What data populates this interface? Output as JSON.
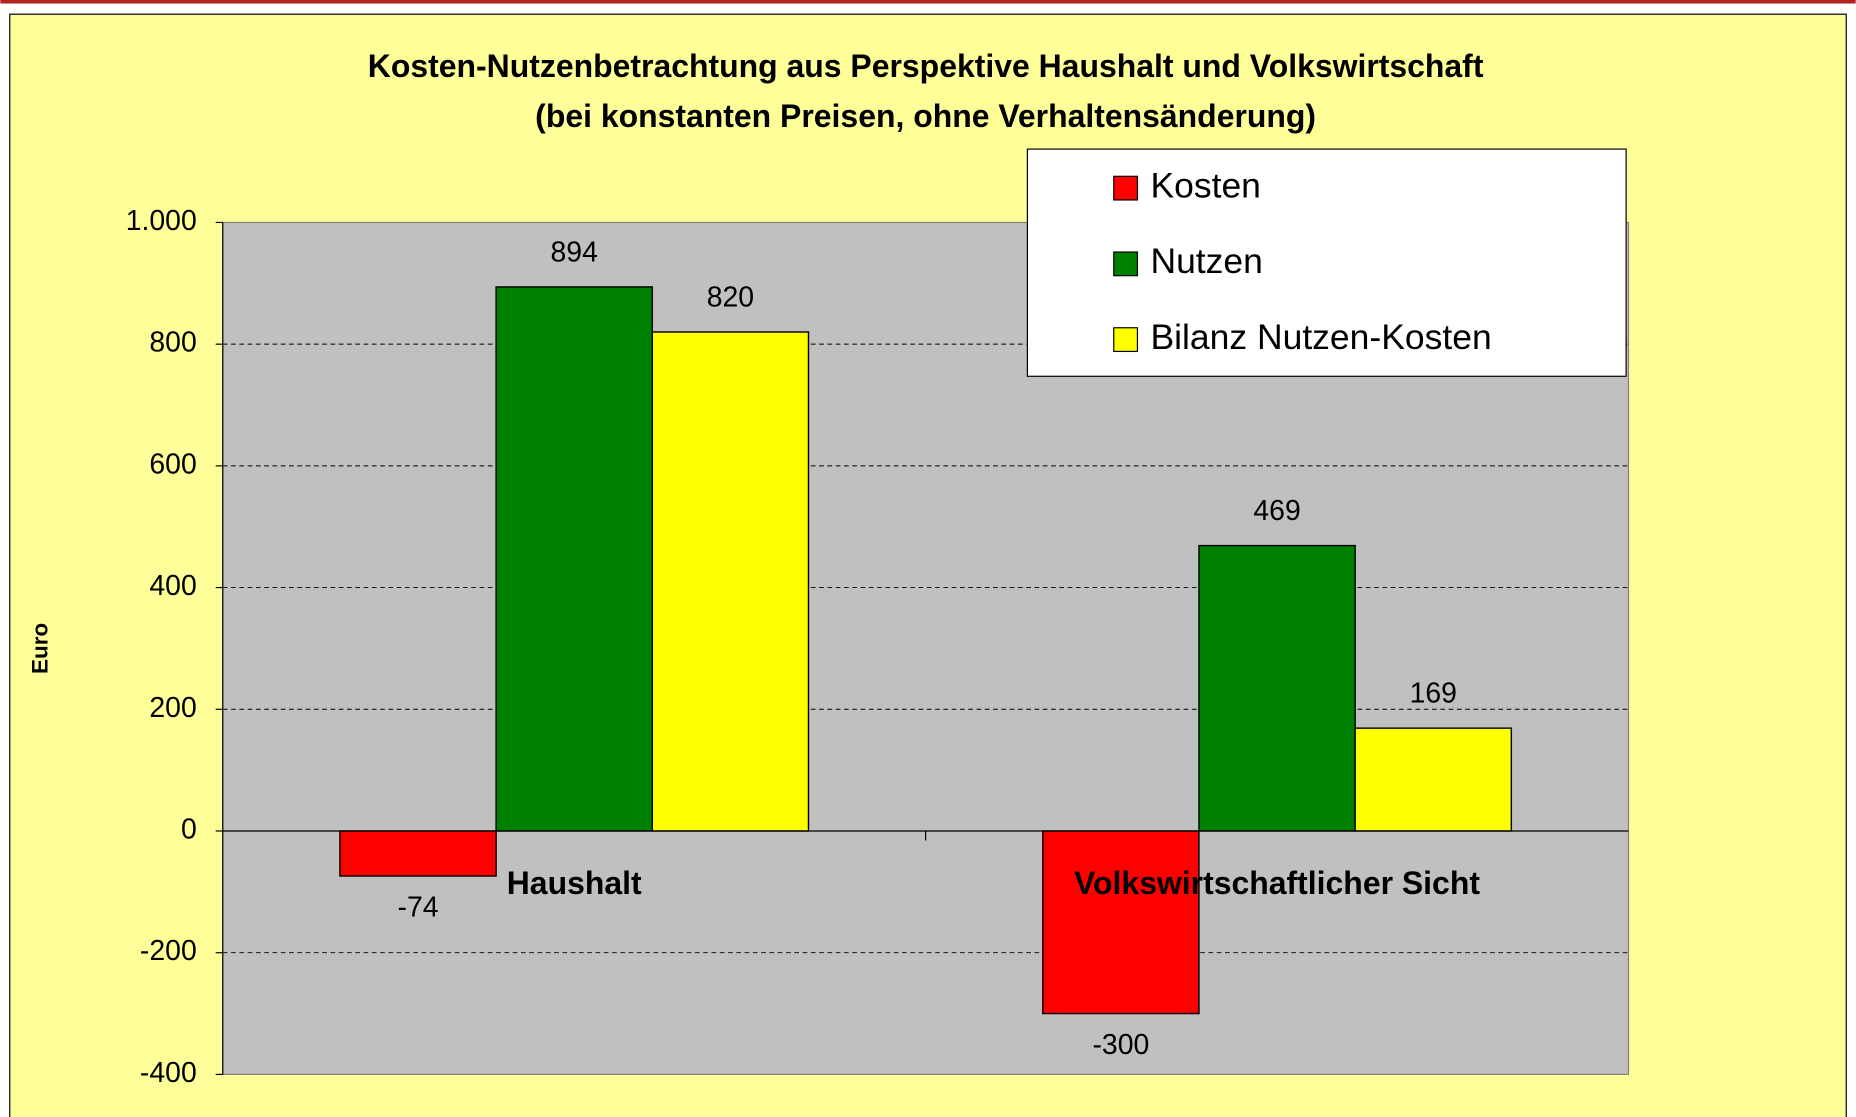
{
  "chart_data": {
    "type": "bar",
    "title": "Kosten-Nutzenbetrachtung aus Perspektive Haushalt und Volkswirtschaft",
    "subtitle": "(bei konstanten Preisen, ohne Verhaltensänderung)",
    "y_label": "Euro",
    "categories": [
      "Haushalt",
      "Volkswirtschaftlicher Sicht"
    ],
    "series": [
      {
        "name": "Kosten",
        "color": "#ff0000",
        "values": [
          -74,
          -300
        ]
      },
      {
        "name": "Nutzen",
        "color": "#008000",
        "values": [
          894,
          469
        ]
      },
      {
        "name": "Bilanz Nutzen-Kosten",
        "color": "#ffff00",
        "values": [
          820,
          169
        ]
      }
    ],
    "ylim": [
      -400,
      1000
    ],
    "yticks": [
      -400,
      -200,
      0,
      200,
      400,
      600,
      800,
      {
        "value": 1000,
        "label": "1.000"
      }
    ],
    "grid": true,
    "legend": "top-right"
  }
}
